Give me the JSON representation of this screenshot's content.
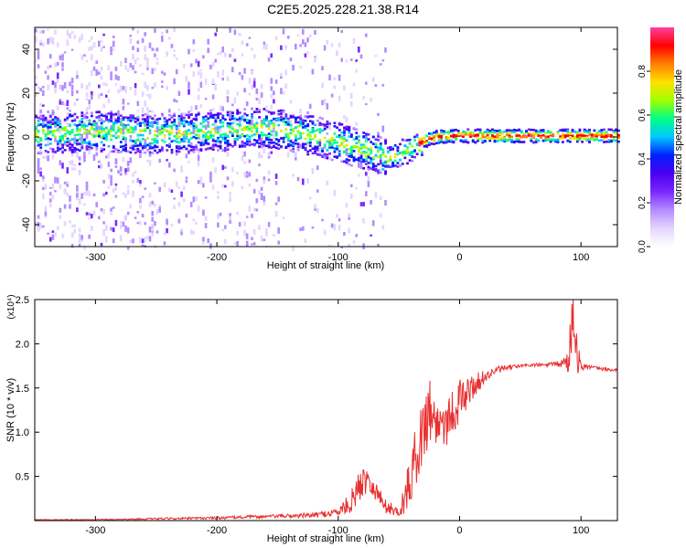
{
  "title": "C2E5.2025.228.21.38.R14",
  "chart_data": [
    {
      "type": "heatmap",
      "xlabel": "Height of straight line (km)",
      "ylabel": "Frequency (Hz)",
      "xlim": [
        -350,
        130
      ],
      "ylim": [
        -50,
        50
      ],
      "xticks": [
        -300,
        -200,
        -100,
        0,
        100
      ],
      "yticks": [
        -40,
        -20,
        0,
        20,
        40
      ],
      "colorbar": {
        "label": "Normalized spectral amplitude",
        "range": [
          0.0,
          1.0
        ],
        "ticks": [
          0.0,
          0.2,
          0.4,
          0.6,
          0.8
        ],
        "tick_labels": [
          "0.0",
          "0.2",
          "0.4",
          "0.6",
          "0.8"
        ],
        "colormap": [
          "#ffffff",
          "#e3d6ff",
          "#b48cff",
          "#7a28ff",
          "#4a00f0",
          "#0020ff",
          "#00c8ff",
          "#00ff88",
          "#a0ff00",
          "#ffe000",
          "#ff8000",
          "#ff0000",
          "#ff40a0"
        ]
      },
      "center_frequency_trace": {
        "x": [
          -350,
          -300,
          -250,
          -200,
          -170,
          -150,
          -120,
          -100,
          -80,
          -60,
          -45,
          -35,
          -25,
          -10,
          0,
          20,
          50,
          80,
          95,
          110,
          130
        ],
        "y": [
          2,
          3,
          2,
          3,
          5,
          4,
          1,
          -2,
          -5,
          -9,
          -6,
          -3,
          0,
          1,
          1,
          1,
          1,
          1,
          1,
          1,
          1
        ]
      },
      "grid": false
    },
    {
      "type": "line",
      "xlabel": "Height of straight line (km)",
      "ylabel": "SNR (10 * v/v)",
      "y_multiplier": "(x10⁴)",
      "xlim": [
        -350,
        130
      ],
      "ylim": [
        0,
        2.5
      ],
      "xticks": [
        -300,
        -200,
        -100,
        0,
        100
      ],
      "yticks": [
        0.5,
        1.0,
        1.5,
        2.0,
        2.5
      ],
      "ytick_labels": [
        "0.5",
        "1.0",
        "1.5",
        "2.0",
        "2.5"
      ],
      "series": [
        {
          "color": "#e83030",
          "envelope_x": [
            -350,
            -300,
            -250,
            -200,
            -150,
            -120,
            -100,
            -90,
            -80,
            -75,
            -70,
            -60,
            -50,
            -45,
            -40,
            -35,
            -30,
            -25,
            -20,
            -10,
            0,
            10,
            20,
            30,
            40,
            50,
            60,
            70,
            80,
            85,
            90,
            92,
            95,
            97,
            100,
            110,
            120,
            130
          ],
          "envelope_y": [
            0.01,
            0.01,
            0.02,
            0.03,
            0.05,
            0.06,
            0.1,
            0.2,
            0.45,
            0.5,
            0.35,
            0.15,
            0.1,
            0.25,
            0.5,
            0.8,
            1.0,
            1.3,
            1.1,
            1.15,
            1.35,
            1.5,
            1.62,
            1.7,
            1.73,
            1.75,
            1.76,
            1.76,
            1.77,
            1.78,
            1.8,
            2.2,
            2.45,
            1.85,
            1.75,
            1.73,
            1.71,
            1.7
          ],
          "noise_amplitude": [
            0.005,
            0.006,
            0.01,
            0.015,
            0.02,
            0.03,
            0.05,
            0.12,
            0.2,
            0.15,
            0.12,
            0.08,
            0.05,
            0.2,
            0.3,
            0.35,
            0.4,
            0.4,
            0.3,
            0.3,
            0.25,
            0.15,
            0.08,
            0.04,
            0.03,
            0.02,
            0.02,
            0.02,
            0.03,
            0.06,
            0.15,
            0.4,
            0.5,
            0.2,
            0.05,
            0.02,
            0.02,
            0.02
          ]
        }
      ],
      "grid": false
    }
  ]
}
